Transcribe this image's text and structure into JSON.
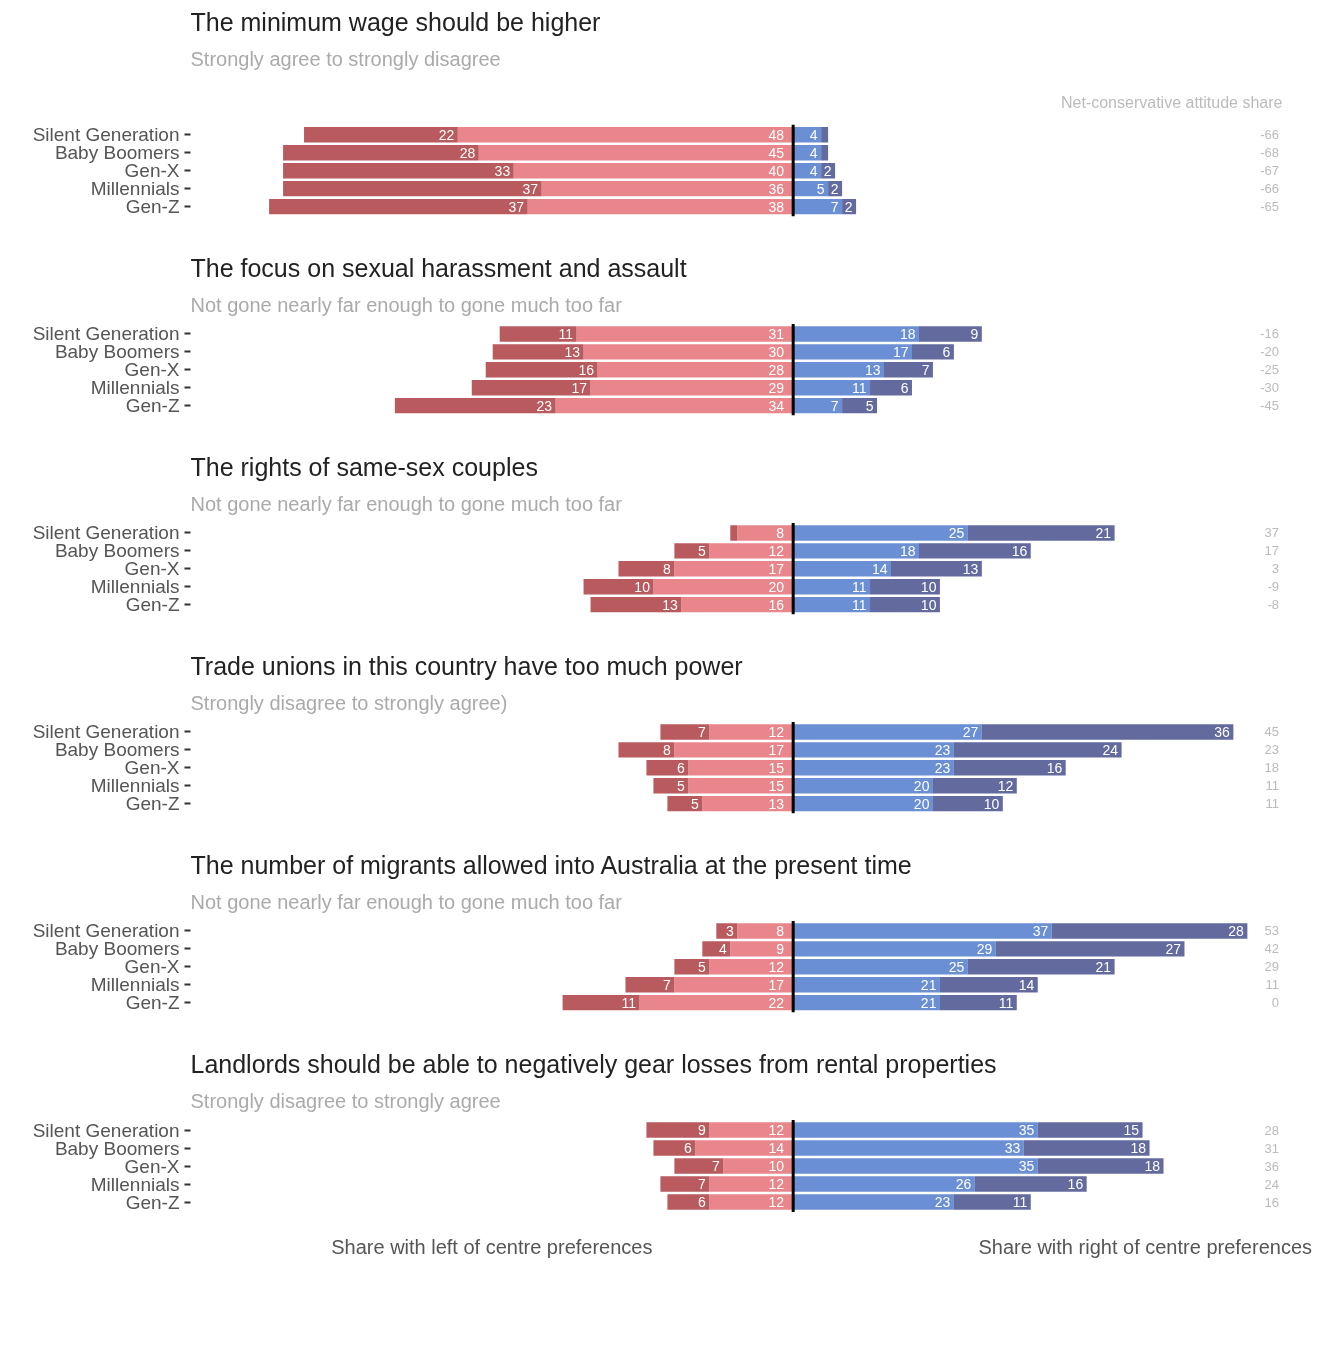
{
  "chart_data": [
    {
      "type": "bar",
      "orientation": "horizontal",
      "stacked": true,
      "data_labels": true,
      "title": "The minimum wage should be higher",
      "subtitle": "Strongly agree to strongly disagree",
      "categories": [
        "Silent Generation",
        "Baby Boomers",
        "Gen-X",
        "Millennials",
        "Gen-Z"
      ],
      "tick_labels": "y",
      "series": [
        {
          "color": "#e8868c",
          "values": [
            48,
            45,
            40,
            36,
            38
          ]
        },
        {
          "color": "#b85a5e",
          "values": [
            22,
            28,
            33,
            37,
            37
          ]
        }
      ]
    },
    {
      "type": "bar",
      "orientation": "horizontal",
      "stacked": true,
      "data_labels": true,
      "categories": [
        "Silent Generation",
        "Baby Boomers",
        "Gen-X",
        "Millennials",
        "Gen-Z"
      ],
      "tick_labels": false,
      "series": [
        {
          "color": "#6a8fd4",
          "values": [
            4,
            4,
            4,
            5,
            7
          ]
        },
        {
          "color": "#636a9e",
          "values": [
            1,
            1,
            2,
            2,
            2
          ],
          "value_labels": [
            null,
            null,
            "2",
            "2",
            "2"
          ]
        }
      ],
      "annotations": [
        "Net-conservative attitude share",
        "-66",
        "-68",
        "-67",
        "-66",
        "-65"
      ]
    },
    {
      "type": "bar",
      "orientation": "horizontal",
      "stacked": true,
      "data_labels": true,
      "title": "The focus on sexual harassment and assault",
      "subtitle": "Not gone nearly far enough to gone much too far",
      "categories": [
        "Silent Generation",
        "Baby Boomers",
        "Gen-X",
        "Millennials",
        "Gen-Z"
      ],
      "tick_labels": "y",
      "series": [
        {
          "color": "#e8868c",
          "values": [
            31,
            30,
            28,
            29,
            34
          ]
        },
        {
          "color": "#b85a5e",
          "values": [
            11,
            13,
            16,
            17,
            23
          ]
        }
      ]
    },
    {
      "type": "bar",
      "orientation": "horizontal",
      "stacked": true,
      "data_labels": true,
      "categories": [
        "Silent Generation",
        "Baby Boomers",
        "Gen-X",
        "Millennials",
        "Gen-Z"
      ],
      "tick_labels": false,
      "series": [
        {
          "color": "#6a8fd4",
          "values": [
            18,
            17,
            13,
            11,
            7
          ]
        },
        {
          "color": "#636a9e",
          "values": [
            9,
            6,
            7,
            6,
            5
          ]
        }
      ],
      "annotations": [
        "-16",
        "-20",
        "-25",
        "-30",
        "-45"
      ]
    },
    {
      "type": "bar",
      "orientation": "horizontal",
      "stacked": true,
      "data_labels": true,
      "title": "The rights of same-sex couples",
      "subtitle": "Not gone nearly far enough to gone much too far",
      "categories": [
        "Silent Generation",
        "Baby Boomers",
        "Gen-X",
        "Millennials",
        "Gen-Z"
      ],
      "tick_labels": "y",
      "series": [
        {
          "color": "#e8868c",
          "values": [
            8,
            12,
            17,
            20,
            16
          ]
        },
        {
          "color": "#b85a5e",
          "values": [
            1,
            5,
            8,
            10,
            13
          ],
          "value_labels": [
            null,
            "5",
            "8",
            "10",
            "13"
          ]
        }
      ]
    },
    {
      "type": "bar",
      "orientation": "horizontal",
      "stacked": true,
      "data_labels": true,
      "categories": [
        "Silent Generation",
        "Baby Boomers",
        "Gen-X",
        "Millennials",
        "Gen-Z"
      ],
      "tick_labels": false,
      "series": [
        {
          "color": "#6a8fd4",
          "values": [
            25,
            18,
            14,
            11,
            11
          ]
        },
        {
          "color": "#636a9e",
          "values": [
            21,
            16,
            13,
            10,
            10
          ]
        }
      ],
      "annotations": [
        "37",
        "17",
        "3",
        "-9",
        "-8"
      ]
    },
    {
      "type": "bar",
      "orientation": "horizontal",
      "stacked": true,
      "data_labels": true,
      "title": "Trade unions in this country have too much power",
      "subtitle": "Strongly disagree to strongly agree)",
      "categories": [
        "Silent Generation",
        "Baby Boomers",
        "Gen-X",
        "Millennials",
        "Gen-Z"
      ],
      "tick_labels": "y",
      "series": [
        {
          "color": "#e8868c",
          "values": [
            12,
            17,
            15,
            15,
            13
          ]
        },
        {
          "color": "#b85a5e",
          "values": [
            7,
            8,
            6,
            5,
            5
          ]
        }
      ]
    },
    {
      "type": "bar",
      "orientation": "horizontal",
      "stacked": true,
      "data_labels": true,
      "categories": [
        "Silent Generation",
        "Baby Boomers",
        "Gen-X",
        "Millennials",
        "Gen-Z"
      ],
      "tick_labels": false,
      "series": [
        {
          "color": "#6a8fd4",
          "values": [
            27,
            23,
            23,
            20,
            20
          ]
        },
        {
          "color": "#636a9e",
          "values": [
            36,
            24,
            16,
            12,
            10
          ]
        }
      ],
      "annotations": [
        "45",
        "23",
        "18",
        "11",
        "11"
      ]
    },
    {
      "type": "bar",
      "orientation": "horizontal",
      "stacked": true,
      "data_labels": true,
      "title": "The number of migrants allowed into Australia at the present time",
      "subtitle": "Not gone nearly far enough to gone much too far",
      "categories": [
        "Silent Generation",
        "Baby Boomers",
        "Gen-X",
        "Millennials",
        "Gen-Z"
      ],
      "tick_labels": "y",
      "series": [
        {
          "color": "#e8868c",
          "values": [
            8,
            9,
            12,
            17,
            22
          ]
        },
        {
          "color": "#b85a5e",
          "values": [
            3,
            4,
            5,
            7,
            11
          ]
        }
      ]
    },
    {
      "type": "bar",
      "orientation": "horizontal",
      "stacked": true,
      "data_labels": true,
      "categories": [
        "Silent Generation",
        "Baby Boomers",
        "Gen-X",
        "Millennials",
        "Gen-Z"
      ],
      "tick_labels": false,
      "series": [
        {
          "color": "#6a8fd4",
          "values": [
            37,
            29,
            25,
            21,
            21
          ]
        },
        {
          "color": "#636a9e",
          "values": [
            28,
            27,
            21,
            14,
            11
          ]
        }
      ],
      "annotations": [
        "53",
        "42",
        "29",
        "11",
        "0"
      ]
    },
    {
      "type": "bar",
      "orientation": "horizontal",
      "stacked": true,
      "data_labels": true,
      "title": "Landlords should be able to negatively gear losses from rental properties",
      "subtitle": "Strongly disagree to strongly agree",
      "categories": [
        "Silent Generation",
        "Baby Boomers",
        "Gen-X",
        "Millennials",
        "Gen-Z"
      ],
      "tick_labels": "y",
      "series": [
        {
          "color": "#e8868c",
          "values": [
            12,
            14,
            10,
            12,
            12
          ]
        },
        {
          "color": "#b85a5e",
          "values": [
            9,
            6,
            7,
            7,
            6
          ]
        }
      ],
      "annotations": [
        "Share with left of centre preferences"
      ]
    },
    {
      "type": "bar",
      "orientation": "horizontal",
      "stacked": true,
      "data_labels": true,
      "categories": [
        "Silent Generation",
        "Baby Boomers",
        "Gen-X",
        "Millennials",
        "Gen-Z"
      ],
      "tick_labels": false,
      "series": [
        {
          "color": "#6a8fd4",
          "values": [
            35,
            33,
            35,
            26,
            23
          ]
        },
        {
          "color": "#636a9e",
          "values": [
            15,
            18,
            18,
            16,
            11
          ]
        }
      ],
      "annotations": [
        "28",
        "31",
        "36",
        "24",
        "16",
        "Share with right of centre preferences"
      ]
    }
  ]
}
